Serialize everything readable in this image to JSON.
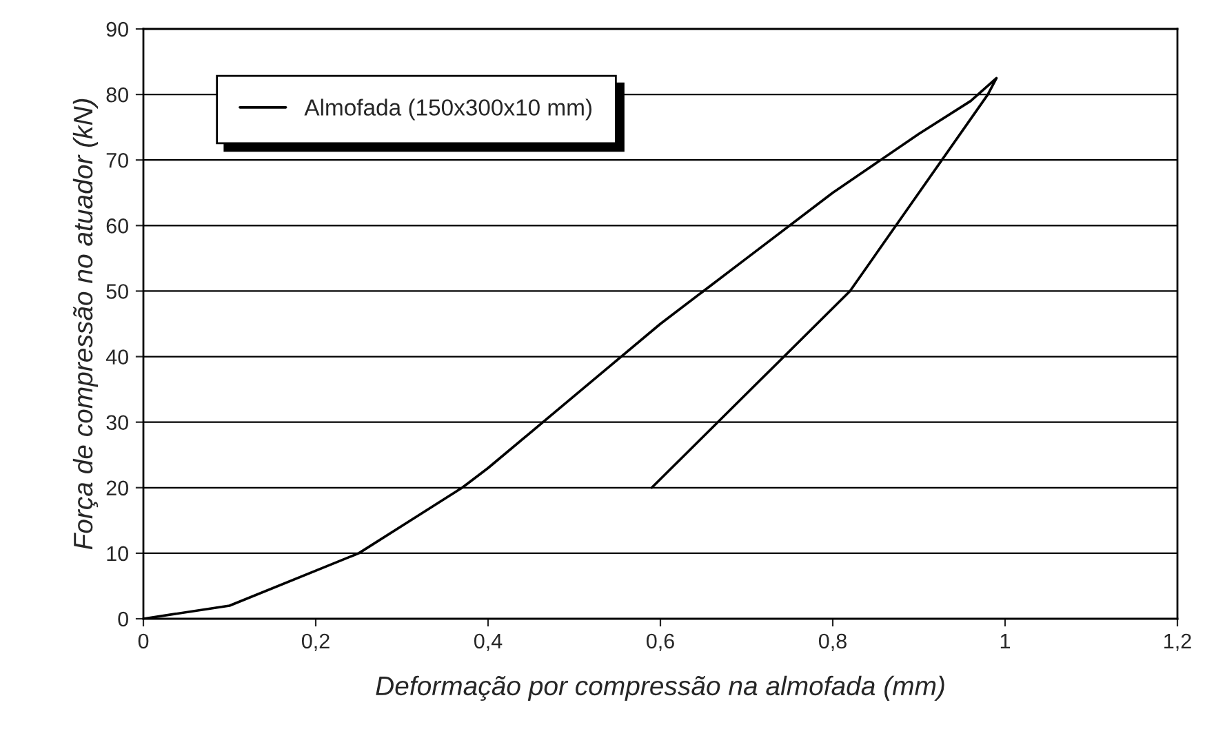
{
  "chart_data": {
    "type": "line",
    "xlabel": "Deformação por compressão na almofada (mm)",
    "ylabel": "Força de compressão no atuador (kN)",
    "series": [
      {
        "name": "Almofada (150x300x10 mm)",
        "color": "#000000",
        "x": [
          0,
          0.1,
          0.25,
          0.37,
          0.4,
          0.5,
          0.6,
          0.7,
          0.8,
          0.9,
          0.96,
          0.99,
          0.98,
          0.82,
          0.59
        ],
        "values": [
          0,
          2,
          10,
          20,
          23,
          34,
          45,
          55,
          65,
          74,
          79,
          82.5,
          80,
          50,
          20
        ]
      }
    ],
    "xlim": [
      0,
      1.2
    ],
    "xticks": [
      {
        "value": 0,
        "label": "0"
      },
      {
        "value": 0.2,
        "label": "0,2"
      },
      {
        "value": 0.4,
        "label": "0,4"
      },
      {
        "value": 0.6,
        "label": "0,6"
      },
      {
        "value": 0.8,
        "label": "0,8"
      },
      {
        "value": 1,
        "label": "1"
      },
      {
        "value": 1.2,
        "label": "1,2"
      }
    ],
    "ylim": [
      0,
      90
    ],
    "yticks": [
      0,
      10,
      20,
      30,
      40,
      50,
      60,
      70,
      80,
      90
    ],
    "grid": "y",
    "legend": "top left",
    "marker": "none",
    "line_style": "solid"
  }
}
